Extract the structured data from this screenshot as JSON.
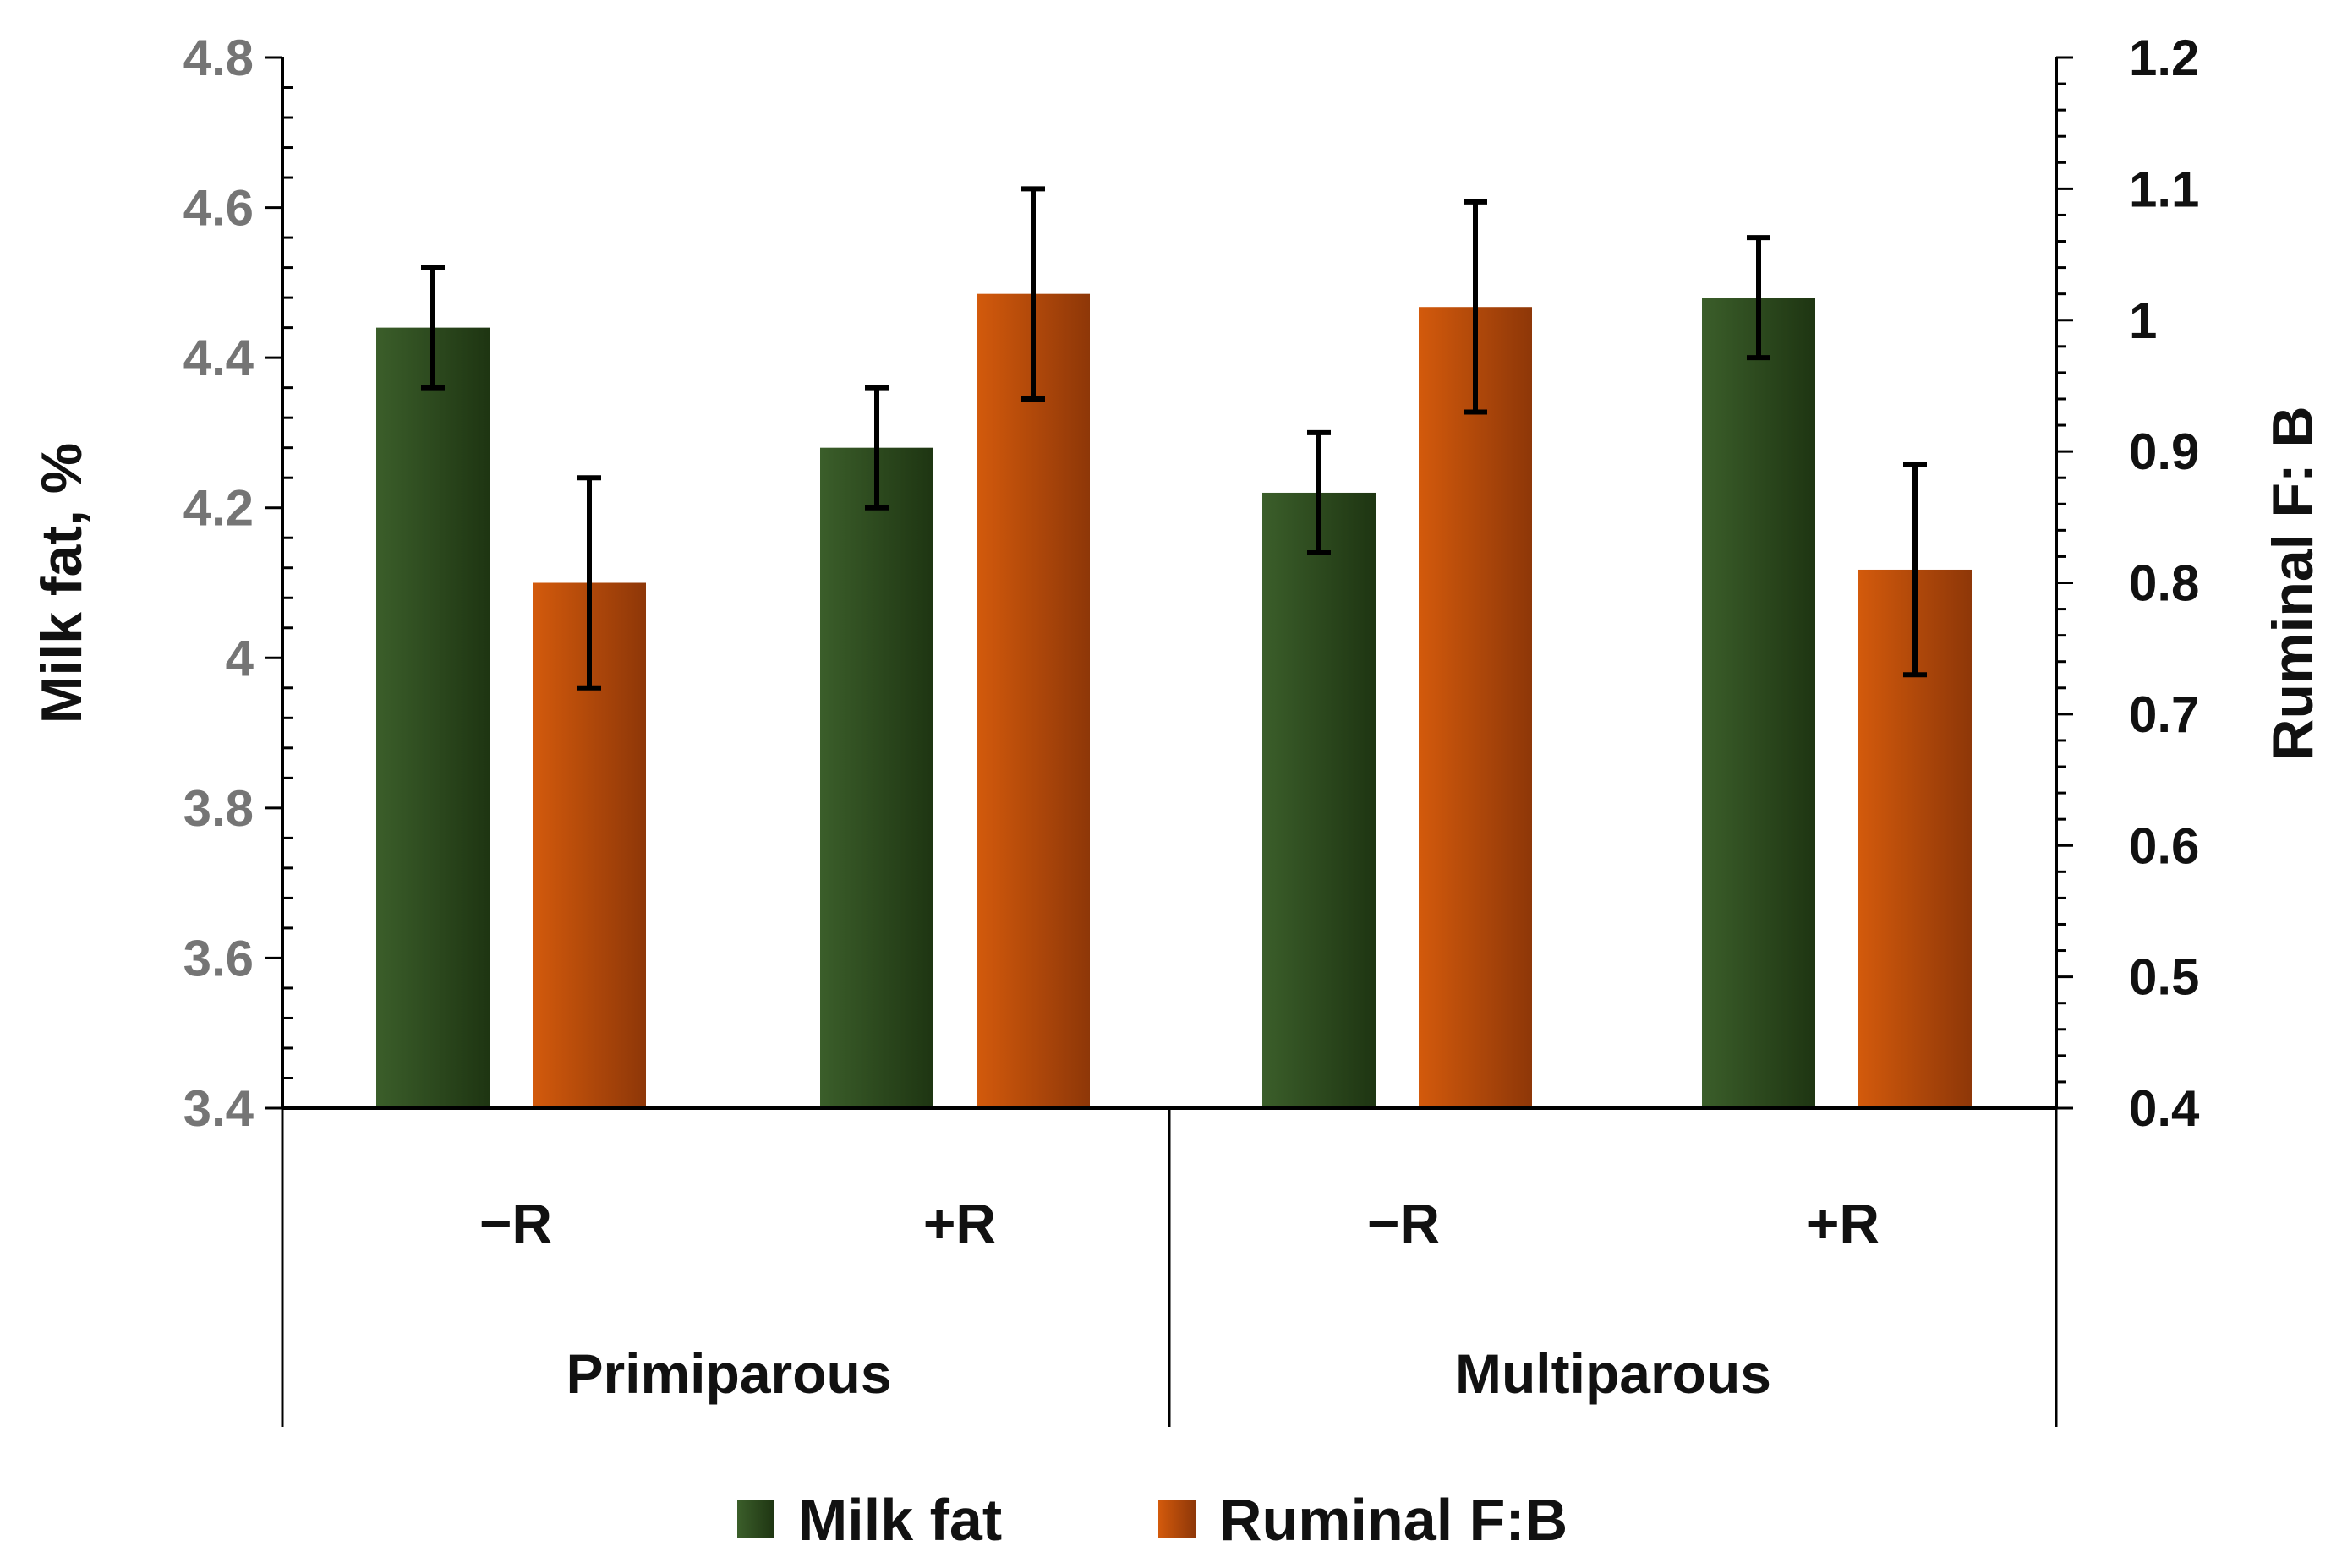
{
  "chart_data": {
    "type": "bar",
    "groups": [
      "Primiparous",
      "Multiparous"
    ],
    "categories": [
      "−R",
      "+R",
      "−R",
      "+R"
    ],
    "series": [
      {
        "name": "Milk fat",
        "axis": "left",
        "color": "#2f4f20",
        "values": [
          4.44,
          4.28,
          4.22,
          4.48
        ],
        "errors": [
          0.08,
          0.08,
          0.08,
          0.08
        ]
      },
      {
        "name": "Ruminal F:B",
        "axis": "right",
        "color": "#c2500a",
        "values": [
          0.8,
          1.02,
          1.01,
          0.81
        ],
        "errors": [
          0.08,
          0.08,
          0.08,
          0.08
        ]
      }
    ],
    "ylabel": "Milk fat, %",
    "ylim": [
      3.4,
      4.8
    ],
    "yticks": [
      "3.4",
      "3.6",
      "3.8",
      "4",
      "4.2",
      "4.4",
      "4.6",
      "4.8"
    ],
    "y2label": "Ruminal F: B",
    "y2lim": [
      0.4,
      1.2
    ],
    "y2ticks": [
      "0.4",
      "0.5",
      "0.6",
      "0.7",
      "0.8",
      "0.9",
      "1",
      "1.1",
      "1.2"
    ],
    "legend": [
      "Milk fat",
      "Ruminal F:B"
    ],
    "legend_position": "bottom",
    "grid": false
  }
}
